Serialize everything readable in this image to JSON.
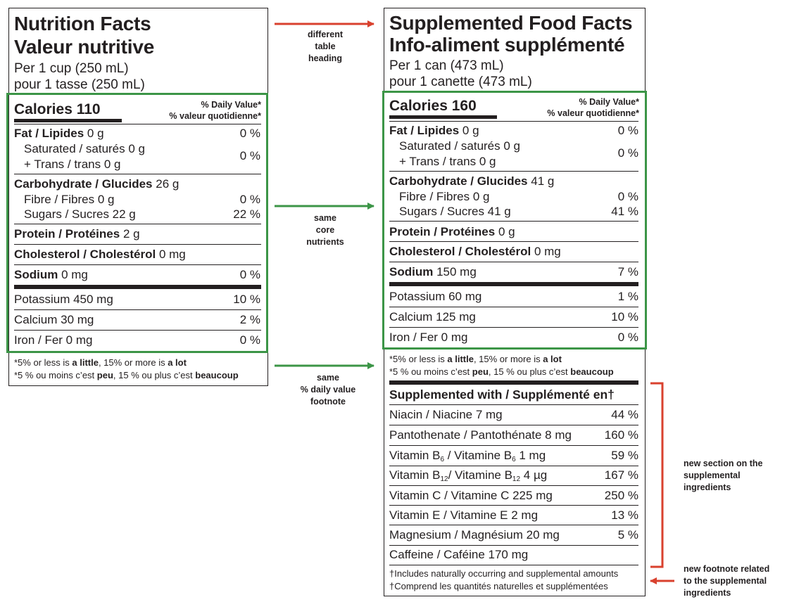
{
  "left": {
    "title_en": "Nutrition Facts",
    "title_fr": "Valeur nutritive",
    "serving_en": "Per 1 cup (250 mL)",
    "serving_fr": "pour 1 tasse (250 mL)",
    "calories_label": "Calories",
    "calories_value": "110",
    "dv_en": "% Daily Value*",
    "dv_fr": "% valeur quotidienne*",
    "rows": {
      "fat": {
        "label": "Fat / Lipides",
        "amount": "0 g",
        "pct": "0 %"
      },
      "sat": {
        "label": "Saturated / saturés 0 g",
        "pct": "0 %"
      },
      "trans": {
        "label": "+ Trans / trans 0 g"
      },
      "carb": {
        "label": "Carbohydrate / Glucides",
        "amount": "26 g"
      },
      "fibre": {
        "label": "Fibre / Fibres 0 g",
        "pct": "0 %"
      },
      "sugars": {
        "label": "Sugars / Sucres 22 g",
        "pct": "22 %"
      },
      "protein": {
        "label": "Protein / Protéines",
        "amount": "2 g"
      },
      "chol": {
        "label": "Cholesterol / Cholestérol",
        "amount": "0 mg"
      },
      "sodium": {
        "label": "Sodium",
        "amount": "0 mg",
        "pct": "0 %"
      },
      "potassium": {
        "label": "Potassium 450 mg",
        "pct": "10 %"
      },
      "calcium": {
        "label": "Calcium 30 mg",
        "pct": "2 %"
      },
      "iron": {
        "label": "Iron / Fer 0 mg",
        "pct": "0 %"
      }
    },
    "footnote_en": {
      "a": "*5% or less is ",
      "b": "a little",
      "c": ", 15% or more is ",
      "d": "a lot"
    },
    "footnote_fr": {
      "a": "*5 % ou moins c’est ",
      "b": "peu",
      "c": ", 15 % ou plus c’est ",
      "d": "beaucoup"
    }
  },
  "right": {
    "title_en": "Supplemented Food Facts",
    "title_fr": "Info-aliment supplémenté",
    "serving_en": "Per 1 can (473  mL)",
    "serving_fr": "pour 1 canette (473 mL)",
    "calories_label": "Calories",
    "calories_value": "160",
    "dv_en": "% Daily Value*",
    "dv_fr": "% valeur quotidienne*",
    "rows": {
      "fat": {
        "label": "Fat / Lipides",
        "amount": "0 g",
        "pct": "0 %"
      },
      "sat": {
        "label": "Saturated / saturés 0 g",
        "pct": "0 %"
      },
      "trans": {
        "label": "+ Trans / trans 0 g"
      },
      "carb": {
        "label": "Carbohydrate / Glucides",
        "amount": "41 g"
      },
      "fibre": {
        "label": "Fibre / Fibres 0 g",
        "pct": "0 %"
      },
      "sugars": {
        "label": "Sugars / Sucres 41 g",
        "pct": "41 %"
      },
      "protein": {
        "label": "Protein / Protéines",
        "amount": "0 g"
      },
      "chol": {
        "label": "Cholesterol / Cholestérol",
        "amount": "0 mg"
      },
      "sodium": {
        "label": "Sodium",
        "amount": "150 mg",
        "pct": "7 %"
      },
      "potassium": {
        "label": "Potassium 60 mg",
        "pct": "1 %"
      },
      "calcium": {
        "label": "Calcium 125 mg",
        "pct": "10 %"
      },
      "iron": {
        "label": "Iron / Fer 0 mg",
        "pct": "0 %"
      }
    },
    "footnote_en": {
      "a": "*5% or less is ",
      "b": "a little",
      "c": ", 15% or more is ",
      "d": "a lot"
    },
    "footnote_fr": {
      "a": "*5 % ou moins c’est ",
      "b": "peu",
      "c": ", 15 % ou plus c’est ",
      "d": "beaucoup"
    },
    "supp_heading": "Supplemented with / Supplémenté en†",
    "supp": {
      "niacin": {
        "label": "Niacin / Niacine 7 mg",
        "pct": "44 %"
      },
      "panto": {
        "label": "Pantothenate / Pantothénate 8 mg",
        "pct": "160 %"
      },
      "b6": {
        "a": "Vitamin B",
        "s1": "6",
        "b": " / Vitamine B",
        "s2": "6",
        "c": " 1 mg",
        "pct": "59 %"
      },
      "b12": {
        "a": "Vitamin B",
        "s1": "12",
        "b": "/ Vitamine B",
        "s2": "12",
        "c": " 4 µg",
        "pct": "167 %"
      },
      "vitc": {
        "label": "Vitamin C / Vitamine C 225 mg",
        "pct": "250 %"
      },
      "vite": {
        "label": "Vitamin E / Vitamine E 2 mg",
        "pct": "13 %"
      },
      "mag": {
        "label": "Magnesium / Magnésium 20 mg",
        "pct": "5 %"
      },
      "caff": {
        "label": "Caffeine / Caféine 170 mg"
      }
    },
    "dagger_en": "†Includes naturally occurring and supplemental amounts",
    "dagger_fr": "†Comprend les quantités naturelles et supplémentées"
  },
  "annotations": {
    "heading": [
      "different",
      "table",
      "heading"
    ],
    "core": [
      "same",
      "core",
      "nutrients"
    ],
    "dv": [
      "same",
      "% daily value",
      "footnote"
    ],
    "new_section": [
      "new section on the",
      "supplemental",
      "ingredients"
    ],
    "new_footnote": [
      "new footnote related",
      "to the supplemental",
      "ingredients"
    ]
  },
  "colors": {
    "red_arrow": "#d9412e",
    "green": "#3c9547",
    "ink": "#231f20"
  }
}
